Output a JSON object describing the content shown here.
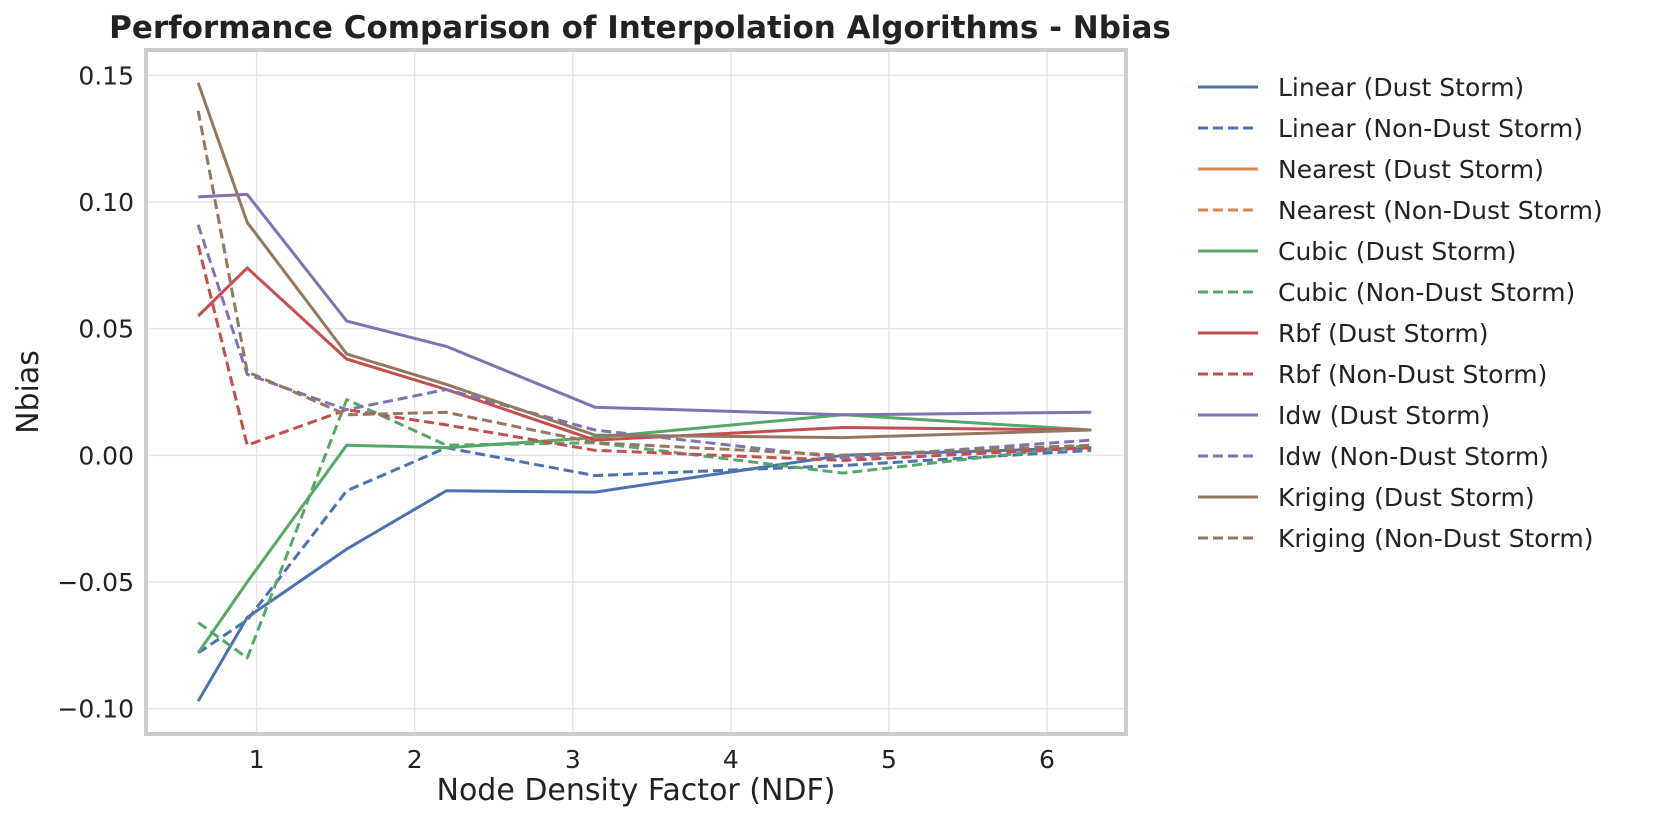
{
  "chart_data": {
    "type": "line",
    "title": "Performance Comparison of Interpolation Algorithms - Nbias",
    "xlabel": "Node Density Factor (NDF)",
    "ylabel": "Nbias",
    "xlim": [
      0.3,
      6.5
    ],
    "ylim": [
      -0.11,
      0.16
    ],
    "xticks": [
      1,
      2,
      3,
      4,
      5,
      6
    ],
    "xtick_labels": [
      "1",
      "2",
      "3",
      "4",
      "5",
      "6"
    ],
    "yticks": [
      -0.1,
      -0.05,
      0.0,
      0.05,
      0.1,
      0.15
    ],
    "ytick_labels": [
      "−0.10",
      "−0.05",
      "0.00",
      "0.05",
      "0.10",
      "0.15"
    ],
    "grid": true,
    "legend_position": "outside-right",
    "x": [
      0.63,
      0.94,
      1.57,
      2.2,
      3.14,
      4.71,
      6.28
    ],
    "series": [
      {
        "name": "Linear (Dust Storm)",
        "color": "#4c72b0",
        "dash": "solid",
        "values": [
          -0.097,
          -0.064,
          -0.037,
          -0.014,
          -0.0145,
          0.0,
          0.003
        ]
      },
      {
        "name": "Linear (Non-Dust Storm)",
        "color": "#4c72b0",
        "dash": "dashed",
        "values": [
          -0.078,
          -0.065,
          -0.014,
          0.003,
          -0.008,
          -0.004,
          0.002
        ]
      },
      {
        "name": "Nearest (Dust Storm)",
        "color": "#dd8452",
        "dash": "solid",
        "values": [
          null,
          null,
          null,
          null,
          null,
          null,
          null
        ]
      },
      {
        "name": "Nearest (Non-Dust Storm)",
        "color": "#dd8452",
        "dash": "dashed",
        "values": [
          null,
          null,
          null,
          null,
          null,
          null,
          null
        ]
      },
      {
        "name": "Cubic (Dust Storm)",
        "color": "#55a868",
        "dash": "solid",
        "values": [
          -0.078,
          -0.05,
          0.004,
          0.003,
          0.007,
          0.016,
          0.01
        ]
      },
      {
        "name": "Cubic (Non-Dust Storm)",
        "color": "#55a868",
        "dash": "dashed",
        "values": [
          -0.066,
          -0.08,
          0.022,
          0.004,
          0.005,
          -0.007,
          0.004
        ]
      },
      {
        "name": "Rbf (Dust Storm)",
        "color": "#c44e52",
        "dash": "solid",
        "values": [
          0.055,
          0.074,
          0.038,
          0.026,
          0.006,
          0.011,
          0.01
        ]
      },
      {
        "name": "Rbf (Non-Dust Storm)",
        "color": "#c44e52",
        "dash": "dashed",
        "values": [
          0.083,
          0.004,
          0.018,
          0.012,
          0.002,
          -0.002,
          0.003
        ]
      },
      {
        "name": "Idw (Dust Storm)",
        "color": "#8172b3",
        "dash": "solid",
        "values": [
          0.102,
          0.103,
          0.053,
          0.043,
          0.019,
          0.016,
          0.017
        ]
      },
      {
        "name": "Idw (Non-Dust Storm)",
        "color": "#8172b3",
        "dash": "dashed",
        "values": [
          0.091,
          0.032,
          0.018,
          0.026,
          0.01,
          -0.001,
          0.006
        ]
      },
      {
        "name": "Kriging (Dust Storm)",
        "color": "#937860",
        "dash": "solid",
        "values": [
          0.147,
          0.092,
          0.04,
          0.028,
          0.008,
          0.007,
          0.01
        ]
      },
      {
        "name": "Kriging (Non-Dust Storm)",
        "color": "#937860",
        "dash": "dashed",
        "values": [
          0.136,
          0.033,
          0.016,
          0.017,
          0.005,
          0.0,
          0.004
        ]
      }
    ]
  }
}
